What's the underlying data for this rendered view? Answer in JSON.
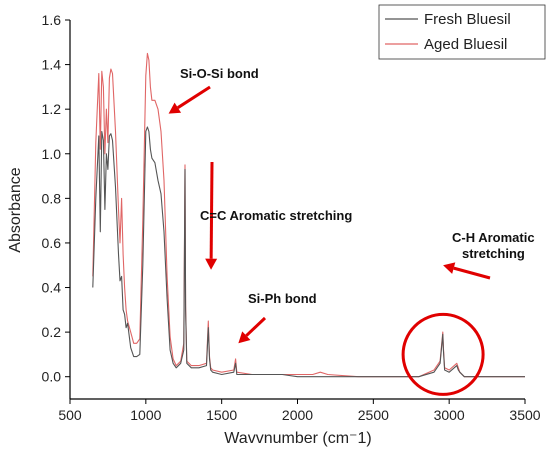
{
  "chart_data": {
    "type": "line",
    "xlabel": "Wavvnumber (cm⁻1)",
    "ylabel": "Absorbance",
    "xlim": [
      500,
      3500
    ],
    "ylim": [
      -0.1,
      1.6
    ],
    "xticks": [
      "500",
      "1000",
      "1500",
      "2000",
      "2500",
      "3000",
      "3500"
    ],
    "yticks": [
      "0.0",
      "0.2",
      "0.4",
      "0.6",
      "0.8",
      "1.0",
      "1.2",
      "1.4",
      "1.6"
    ],
    "grid": false,
    "legend": "top-right",
    "series": [
      {
        "name": "Fresh Bluesil",
        "color": "#555555",
        "x": [
          650,
          670,
          690,
          700,
          710,
          720,
          730,
          740,
          750,
          760,
          770,
          780,
          800,
          820,
          830,
          840,
          850,
          860,
          870,
          880,
          900,
          920,
          940,
          960,
          980,
          1000,
          1010,
          1020,
          1030,
          1040,
          1060,
          1080,
          1100,
          1120,
          1140,
          1160,
          1180,
          1200,
          1230,
          1250,
          1258,
          1262,
          1270,
          1300,
          1350,
          1400,
          1412,
          1420,
          1428,
          1440,
          1500,
          1580,
          1592,
          1600,
          1700,
          1800,
          1900,
          2000,
          2100,
          2200,
          2400,
          2600,
          2800,
          2900,
          2940,
          2958,
          2962,
          2970,
          3000,
          3050,
          3060,
          3070,
          3100,
          3200,
          3500
        ],
        "y": [
          0.4,
          0.8,
          1.08,
          0.65,
          1.1,
          1.06,
          0.75,
          1.0,
          0.93,
          1.08,
          1.09,
          1.06,
          0.85,
          0.55,
          0.43,
          0.45,
          0.3,
          0.28,
          0.22,
          0.24,
          0.13,
          0.09,
          0.09,
          0.1,
          0.5,
          1.1,
          1.12,
          1.1,
          1.02,
          0.98,
          0.96,
          0.88,
          0.82,
          0.65,
          0.35,
          0.12,
          0.06,
          0.04,
          0.06,
          0.12,
          0.93,
          0.3,
          0.06,
          0.04,
          0.04,
          0.05,
          0.22,
          0.08,
          0.03,
          0.02,
          0.01,
          0.02,
          0.06,
          0.01,
          0.01,
          0.01,
          0.01,
          0.0,
          0.0,
          0.0,
          0.0,
          0.0,
          0.0,
          0.02,
          0.06,
          0.19,
          0.12,
          0.03,
          0.02,
          0.05,
          0.03,
          0.02,
          0.0,
          0.0,
          0.0
        ]
      },
      {
        "name": "Aged Bluesil",
        "color": "#e06666",
        "x": [
          650,
          670,
          690,
          700,
          710,
          720,
          730,
          740,
          750,
          760,
          770,
          780,
          800,
          820,
          830,
          840,
          850,
          860,
          870,
          880,
          900,
          920,
          940,
          960,
          980,
          1000,
          1010,
          1020,
          1030,
          1040,
          1060,
          1080,
          1100,
          1120,
          1140,
          1160,
          1180,
          1200,
          1230,
          1250,
          1258,
          1262,
          1270,
          1300,
          1350,
          1400,
          1412,
          1420,
          1428,
          1440,
          1500,
          1580,
          1592,
          1600,
          1700,
          1800,
          1900,
          2000,
          2100,
          2150,
          2200,
          2400,
          2600,
          2800,
          2900,
          2940,
          2958,
          2962,
          2970,
          3000,
          3050,
          3060,
          3070,
          3100,
          3200,
          3500
        ],
        "y": [
          0.45,
          1.05,
          1.36,
          1.02,
          1.37,
          1.3,
          1.0,
          1.2,
          1.05,
          1.34,
          1.38,
          1.36,
          1.1,
          0.75,
          0.6,
          0.8,
          0.55,
          0.4,
          0.3,
          0.25,
          0.2,
          0.15,
          0.15,
          0.17,
          0.7,
          1.35,
          1.45,
          1.42,
          1.3,
          1.24,
          1.24,
          1.2,
          1.1,
          0.88,
          0.45,
          0.18,
          0.08,
          0.05,
          0.07,
          0.15,
          0.95,
          0.32,
          0.07,
          0.05,
          0.05,
          0.06,
          0.25,
          0.09,
          0.04,
          0.03,
          0.02,
          0.03,
          0.08,
          0.02,
          0.01,
          0.01,
          0.01,
          0.01,
          0.01,
          0.02,
          0.01,
          0.0,
          0.0,
          0.0,
          0.03,
          0.07,
          0.2,
          0.13,
          0.04,
          0.03,
          0.06,
          0.04,
          0.02,
          0.0,
          0.0,
          0.0
        ]
      }
    ],
    "annotations": [
      {
        "text": "Si-O-Si bond",
        "target": [
          1150,
          1.18
        ]
      },
      {
        "text": "C=C Aromatic stretching",
        "target": [
          1430,
          0.48
        ]
      },
      {
        "text": "Si-Ph bond",
        "target": [
          1610,
          0.15
        ]
      },
      {
        "text": "C-H Aromatic",
        "text2": "stretching",
        "target": [
          2960,
          0.5
        ]
      }
    ],
    "highlight_circle": {
      "x": 2960,
      "y": 0.1,
      "color": "#e00000"
    }
  }
}
